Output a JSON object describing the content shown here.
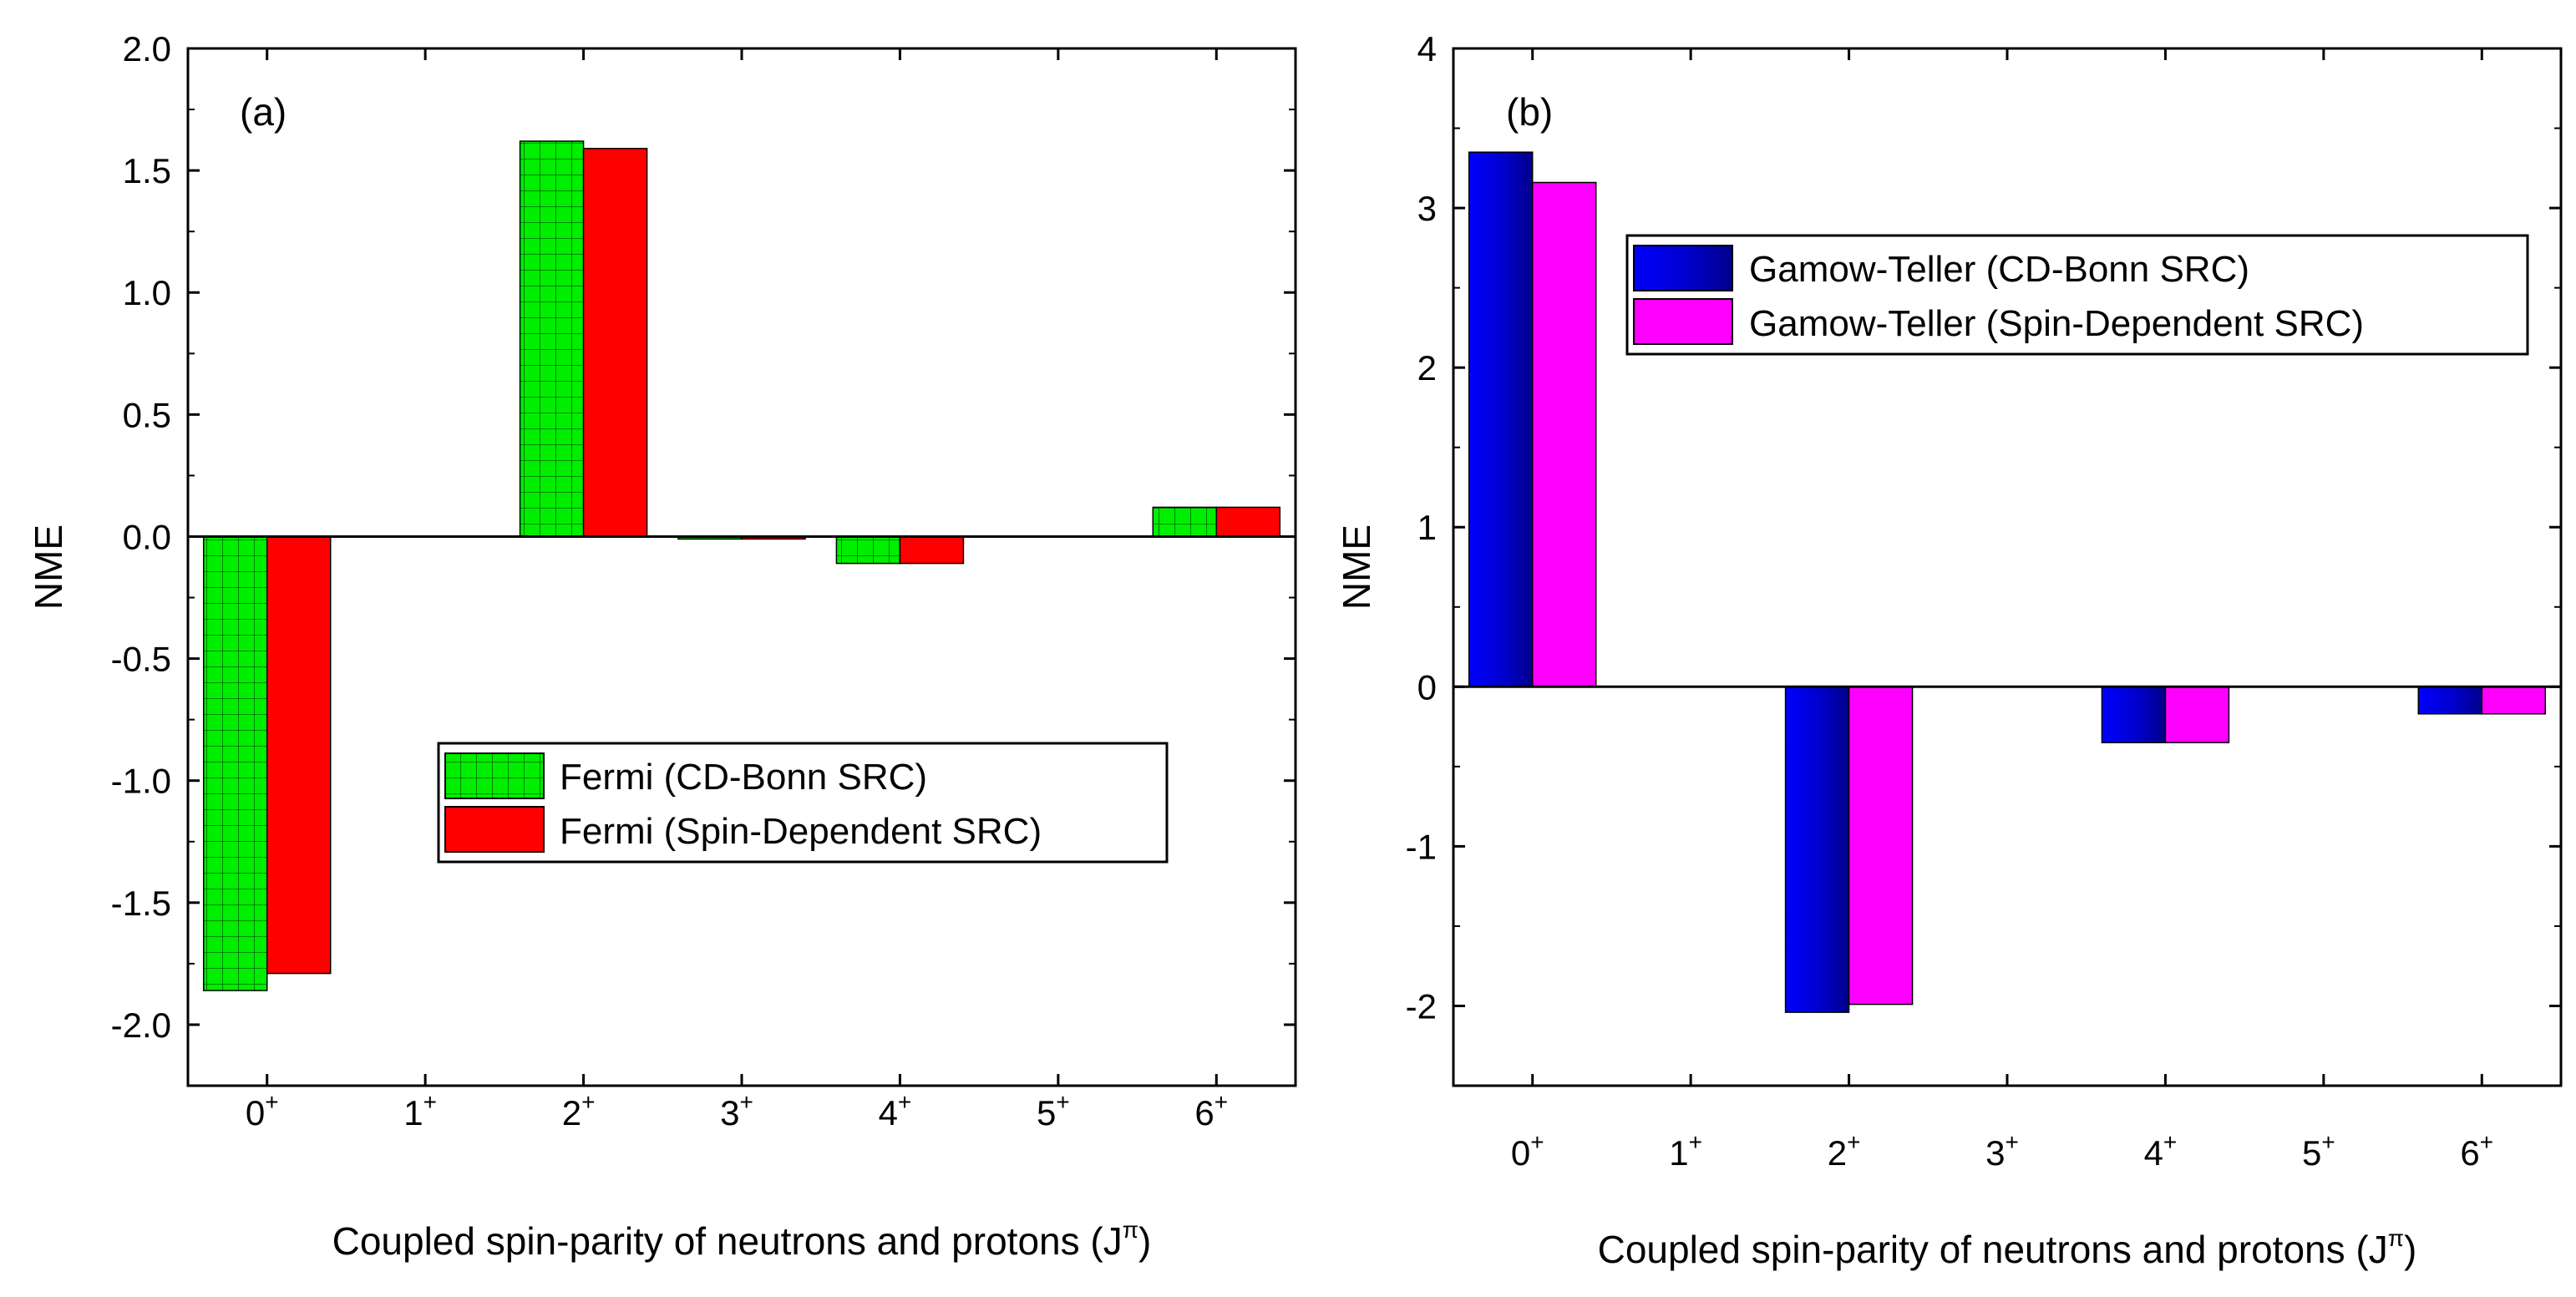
{
  "chart_data": [
    {
      "panel": "(a)",
      "type": "bar",
      "xlabel": "Coupled spin-parity of neutrons and protons (J",
      "xlabel_sup": "π",
      "xlabel_tail": ")",
      "ylabel": "NME",
      "ylim": [
        -2.25,
        2.0
      ],
      "yticks": [
        2.0,
        1.5,
        1.0,
        0.5,
        0.0,
        -0.5,
        -1.0,
        -1.5,
        -2.0
      ],
      "ytick_labels": [
        "2.0",
        "1.5",
        "1.0",
        "0.5",
        "0.0",
        "-0.5",
        "-1.0",
        "-1.5",
        "-2.0"
      ],
      "categories": [
        {
          "base": "0",
          "sup": "+"
        },
        {
          "base": "1",
          "sup": "+"
        },
        {
          "base": "2",
          "sup": "+"
        },
        {
          "base": "3",
          "sup": "+"
        },
        {
          "base": "4",
          "sup": "+"
        },
        {
          "base": "5",
          "sup": "+"
        },
        {
          "base": "6",
          "sup": "+"
        }
      ],
      "series": [
        {
          "name": "Fermi (CD-Bonn SRC)",
          "color": "#00ee00",
          "pattern": "grid",
          "values": [
            -1.86,
            0.0,
            1.62,
            -0.01,
            -0.11,
            0.0,
            0.12
          ]
        },
        {
          "name": "Fermi (Spin-Dependent SRC)",
          "color": "#ff0000",
          "pattern": "solid",
          "values": [
            -1.79,
            0.0,
            1.59,
            -0.01,
            -0.11,
            0.0,
            0.12
          ]
        }
      ],
      "legend_position": "center-right"
    },
    {
      "panel": "(b)",
      "type": "bar",
      "xlabel": "Coupled spin-parity of neutrons and protons (J",
      "xlabel_sup": "π",
      "xlabel_tail": ")",
      "ylabel": "NME",
      "ylim": [
        -2.5,
        4.0
      ],
      "yticks": [
        4,
        3,
        2,
        1,
        0,
        -1,
        -2
      ],
      "ytick_labels": [
        "4",
        "3",
        "2",
        "1",
        "0",
        "-1",
        "-2"
      ],
      "categories": [
        {
          "base": "0",
          "sup": "+"
        },
        {
          "base": "1",
          "sup": "+"
        },
        {
          "base": "2",
          "sup": "+"
        },
        {
          "base": "3",
          "sup": "+"
        },
        {
          "base": "4",
          "sup": "+"
        },
        {
          "base": "5",
          "sup": "+"
        },
        {
          "base": "6",
          "sup": "+"
        }
      ],
      "series": [
        {
          "name": "Gamow-Teller (CD-Bonn SRC)",
          "color": "#0000cc",
          "pattern": "gradient",
          "values": [
            3.35,
            0.0,
            -2.04,
            0.0,
            -0.35,
            0.0,
            -0.17
          ]
        },
        {
          "name": "Gamow-Teller (Spin-Dependent SRC)",
          "color": "#ff00ff",
          "pattern": "solid",
          "values": [
            3.16,
            0.0,
            -1.99,
            0.0,
            -0.35,
            0.0,
            -0.17
          ]
        }
      ],
      "legend_position": "top-right"
    }
  ]
}
